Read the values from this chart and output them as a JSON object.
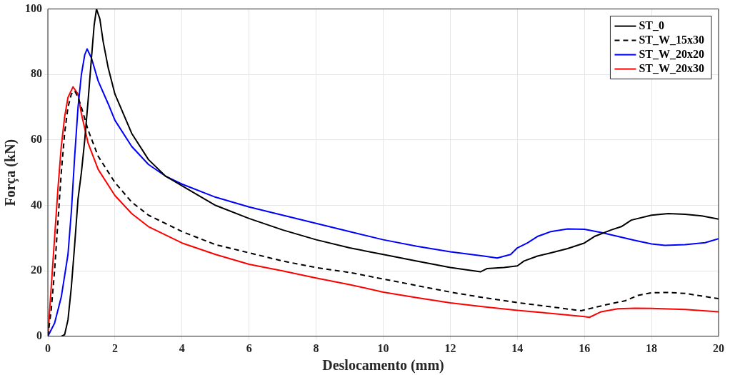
{
  "chart_data": {
    "type": "line",
    "xlabel": "Deslocamento (mm)",
    "ylabel": "Força (kN)",
    "xlim": [
      0,
      20
    ],
    "xticks": [
      0,
      2,
      4,
      6,
      8,
      10,
      12,
      14,
      16,
      18,
      20
    ],
    "ylim": [
      0,
      100
    ],
    "yticks": [
      0,
      20,
      40,
      60,
      80,
      100
    ],
    "grid": true,
    "legend": "top right",
    "marker": "none",
    "series": [
      {
        "name": "ST_0",
        "color": "#000000",
        "line_style": "solid",
        "x": [
          0.4,
          0.5,
          0.6,
          0.7,
          0.8,
          0.9,
          1.0,
          1.1,
          1.2,
          1.3,
          1.38,
          1.45,
          1.55,
          1.65,
          1.8,
          2,
          2.5,
          3,
          3.5,
          4,
          5,
          6,
          7,
          8,
          9,
          10,
          11,
          12,
          12.9,
          13.1,
          13.6,
          14,
          14.2,
          14.6,
          15,
          15.5,
          16,
          16.3,
          16.8,
          17.1,
          17.4,
          18,
          18.5,
          19,
          19.5,
          20
        ],
        "values": [
          0,
          0.5,
          5,
          15,
          28,
          42,
          50,
          60,
          72,
          85,
          95,
          100,
          97,
          90,
          82,
          74,
          62,
          54,
          49,
          46,
          40,
          36,
          32.5,
          29.5,
          27,
          25,
          23,
          21,
          19.7,
          20.7,
          21,
          21.5,
          23,
          24.5,
          25.5,
          26.8,
          28.5,
          30.5,
          32.5,
          33.5,
          35.5,
          37,
          37.5,
          37.3,
          36.8,
          35.8
        ]
      },
      {
        "name": "ST_W_15x30",
        "color": "#000000",
        "line_style": "dashed",
        "x": [
          0,
          0.1,
          0.2,
          0.3,
          0.4,
          0.5,
          0.6,
          0.7,
          0.8,
          0.9,
          1.0,
          1.2,
          1.5,
          2,
          2.5,
          3,
          4,
          5,
          6,
          7,
          8,
          9,
          10,
          11,
          12,
          13,
          14,
          15,
          15.9,
          16.3,
          16.8,
          17.2,
          17.6,
          18,
          18.5,
          19,
          20
        ],
        "values": [
          0,
          8,
          20,
          35,
          50,
          62,
          70,
          74,
          75,
          73,
          70,
          63,
          55,
          47,
          41,
          37,
          32,
          28,
          25.5,
          23,
          21,
          19.5,
          17.5,
          15.5,
          13.5,
          11.8,
          10.3,
          9,
          7.8,
          8.8,
          10,
          10.8,
          12.5,
          13.3,
          13.4,
          13.1,
          11.5
        ]
      },
      {
        "name": "ST_W_20x20",
        "color": "#0000ff",
        "line_style": "solid",
        "x": [
          0,
          0.2,
          0.4,
          0.6,
          0.7,
          0.8,
          0.9,
          1.0,
          1.1,
          1.17,
          1.3,
          1.5,
          1.8,
          2,
          2.5,
          3,
          3.5,
          4,
          5,
          6,
          7,
          8,
          9,
          10,
          11,
          12,
          13,
          13.4,
          13.8,
          14,
          14.3,
          14.6,
          15,
          15.5,
          16,
          16.5,
          17,
          17.5,
          18,
          18.4,
          19,
          19.6,
          20
        ],
        "values": [
          0,
          4,
          12,
          25,
          38,
          55,
          70,
          80,
          86,
          87.8,
          85,
          78,
          71,
          66,
          58,
          52.5,
          49,
          46.5,
          42.5,
          39.5,
          37,
          34.5,
          32,
          29.5,
          27.5,
          25.8,
          24.5,
          23.9,
          25,
          27,
          28.5,
          30.5,
          32,
          32.8,
          32.7,
          31.7,
          30.5,
          29.3,
          28.2,
          27.8,
          28,
          28.6,
          29.8
        ]
      },
      {
        "name": "ST_W_20x30",
        "color": "#ff0000",
        "line_style": "solid",
        "x": [
          0,
          0.1,
          0.2,
          0.3,
          0.4,
          0.5,
          0.6,
          0.75,
          0.9,
          1.0,
          1.2,
          1.5,
          2,
          2.5,
          3,
          4,
          5,
          6,
          7,
          8,
          9,
          10,
          11,
          12,
          13,
          14,
          15,
          16,
          16.15,
          16.5,
          17,
          17.5,
          18,
          19,
          20
        ],
        "values": [
          0,
          15,
          30,
          45,
          58,
          67,
          73,
          76.2,
          74,
          68,
          59,
          51,
          43,
          37.5,
          33.5,
          28.5,
          25,
          22,
          20,
          17.8,
          15.8,
          13.5,
          11.8,
          10.2,
          9,
          7.9,
          7,
          6,
          5.8,
          7.5,
          8.4,
          8.6,
          8.5,
          8.2,
          7.5
        ]
      }
    ]
  }
}
